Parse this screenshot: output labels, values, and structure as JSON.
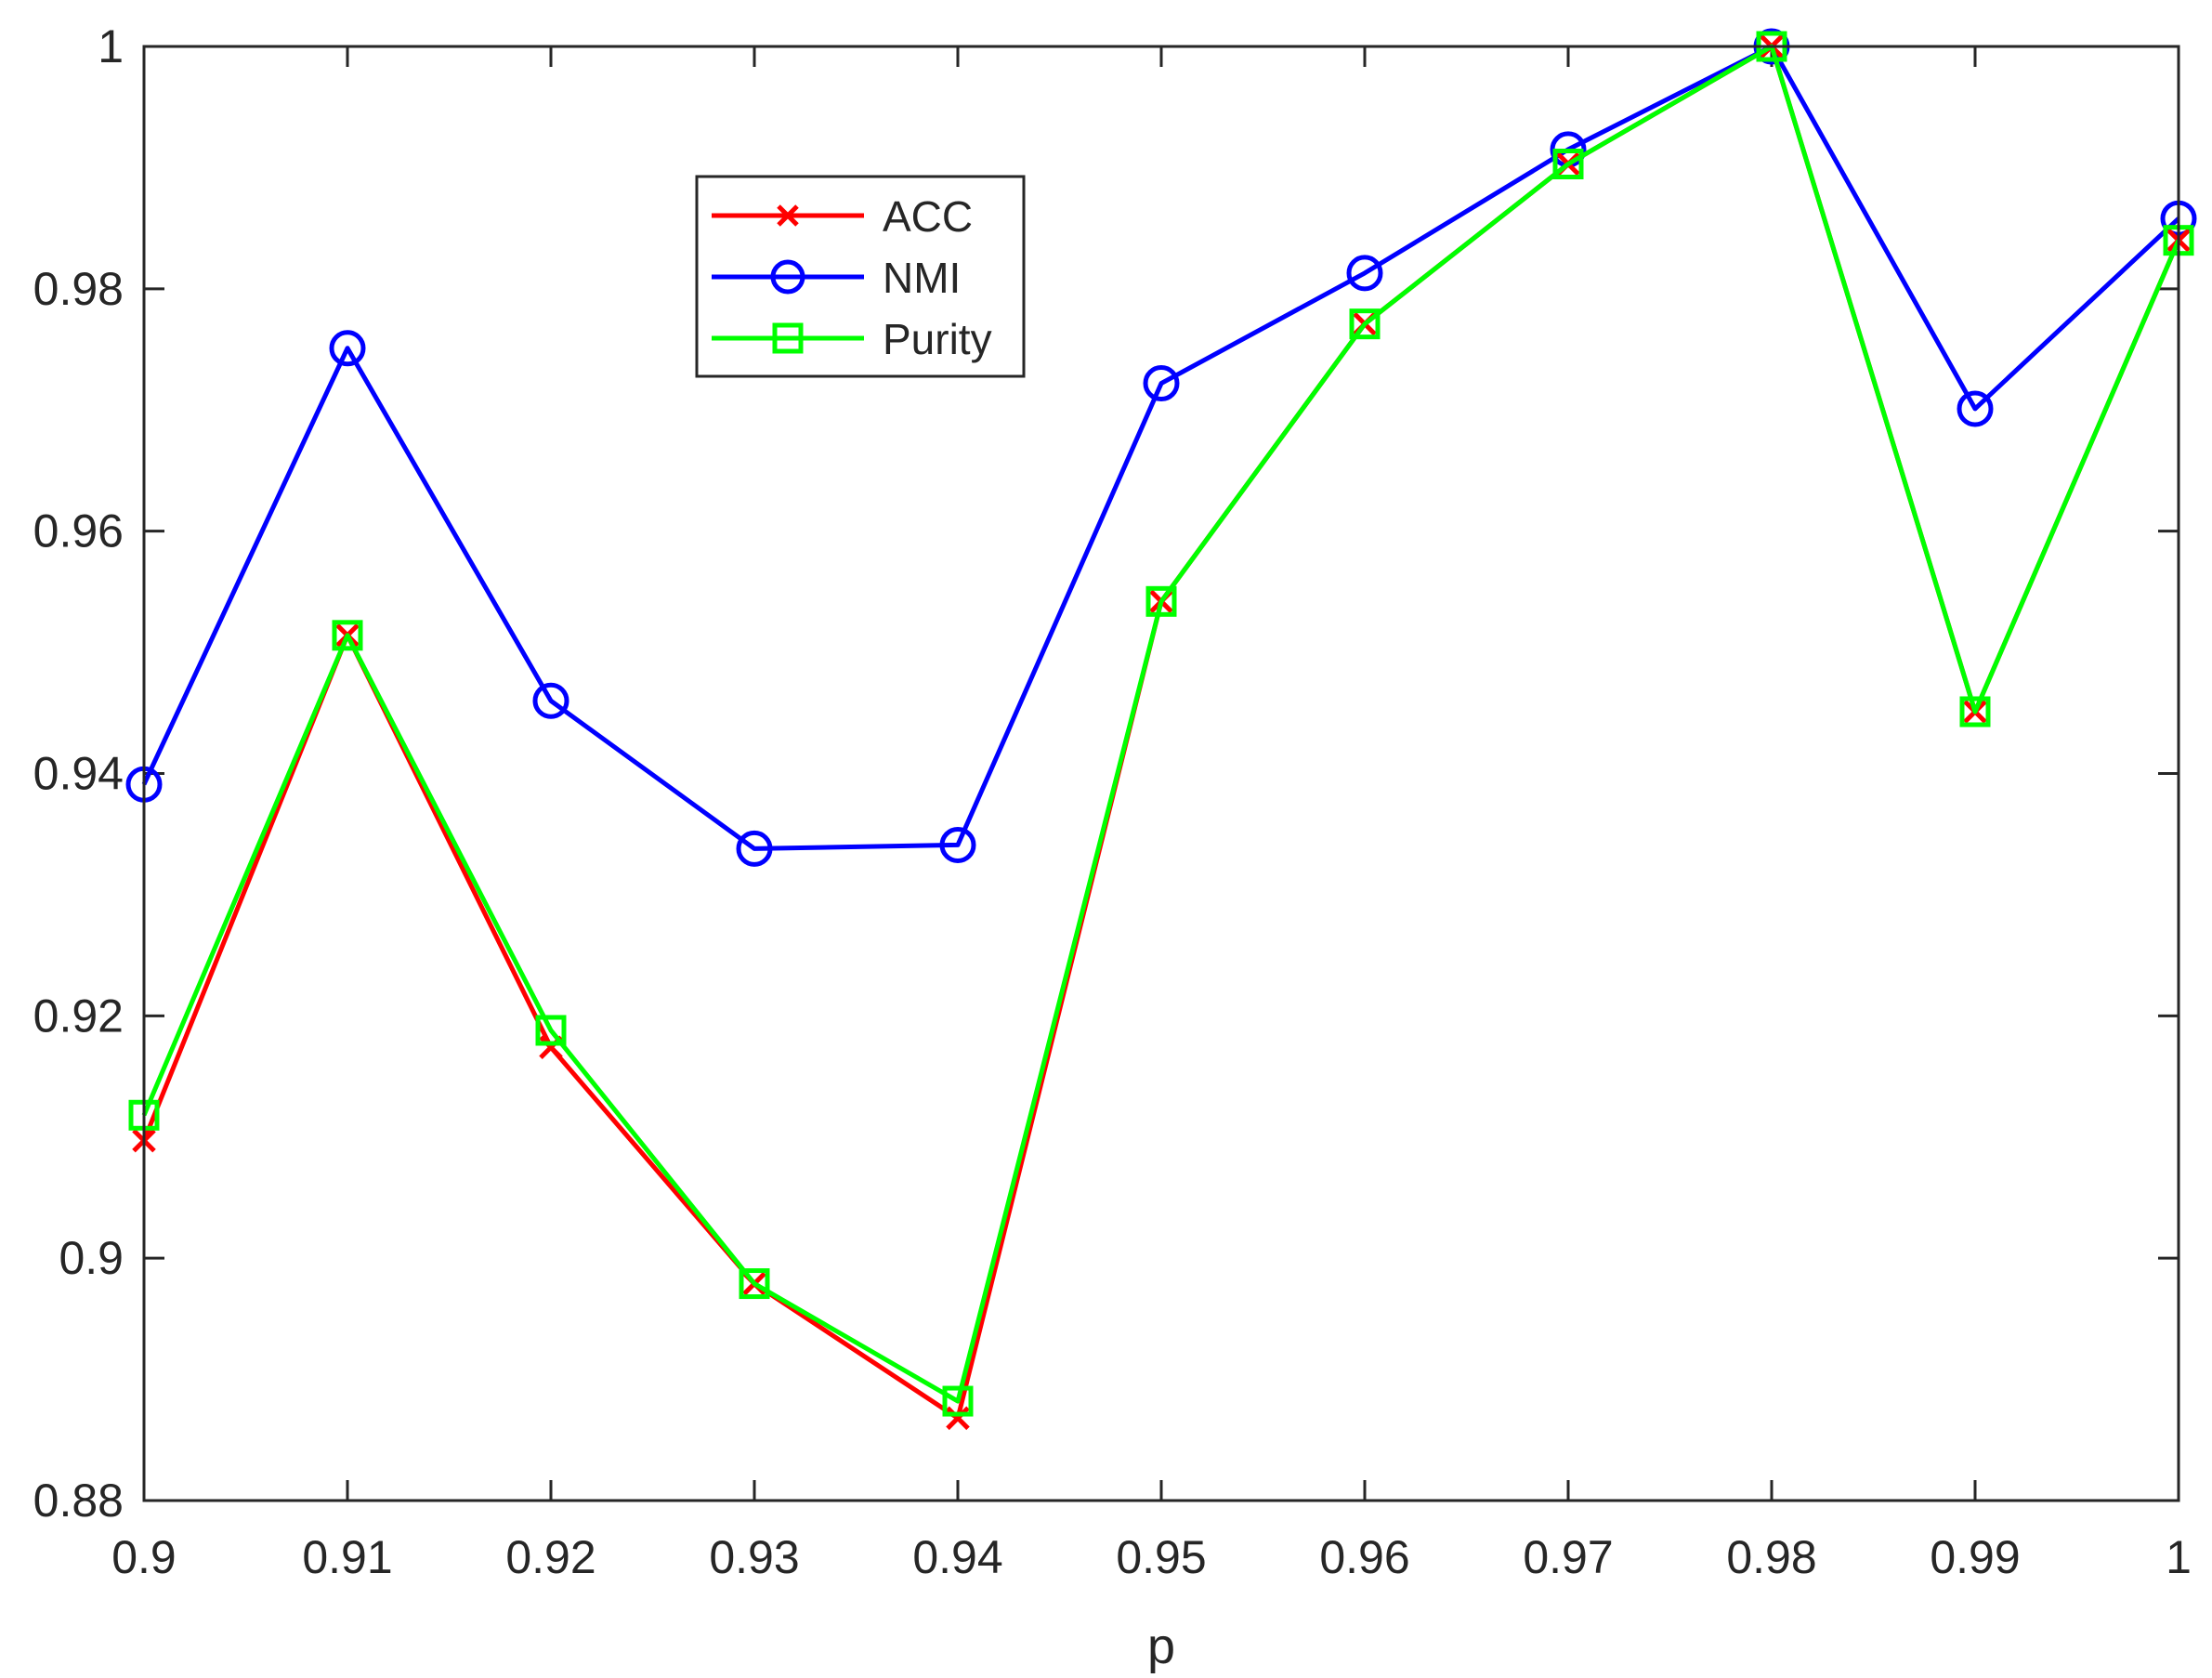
{
  "chart_data": {
    "type": "line",
    "title": "",
    "xlabel": "p",
    "ylabel": "",
    "x": [
      0.9,
      0.91,
      0.92,
      0.93,
      0.94,
      0.95,
      0.96,
      0.97,
      0.98,
      0.99,
      1
    ],
    "xlim": [
      0.9,
      1
    ],
    "ylim": [
      0.88,
      1
    ],
    "x_ticks": [
      "0.9",
      "0.91",
      "0.92",
      "0.93",
      "0.94",
      "0.95",
      "0.96",
      "0.97",
      "0.98",
      "0.99",
      "1"
    ],
    "y_ticks": [
      "0.88",
      "0.9",
      "0.92",
      "0.94",
      "0.96",
      "0.98",
      "1"
    ],
    "grid": false,
    "legend_position": "upper-left-center",
    "series": [
      {
        "name": "ACC",
        "color": "#ff0000",
        "marker": "x",
        "values": [
          0.9097,
          0.9514,
          0.9174,
          0.8979,
          0.8868,
          0.9542,
          0.9771,
          0.9903,
          1.0,
          0.9451,
          0.984
        ]
      },
      {
        "name": "NMI",
        "color": "#0000ff",
        "marker": "circle",
        "values": [
          0.9391,
          0.9751,
          0.946,
          0.9338,
          0.9341,
          0.9722,
          0.9813,
          0.9915,
          1.0,
          0.9701,
          0.9858
        ]
      },
      {
        "name": "Purity",
        "color": "#00ff00",
        "marker": "square",
        "values": [
          0.9118,
          0.9514,
          0.9188,
          0.8979,
          0.8882,
          0.9542,
          0.9771,
          0.9903,
          1.0,
          0.9451,
          0.984
        ]
      }
    ]
  }
}
